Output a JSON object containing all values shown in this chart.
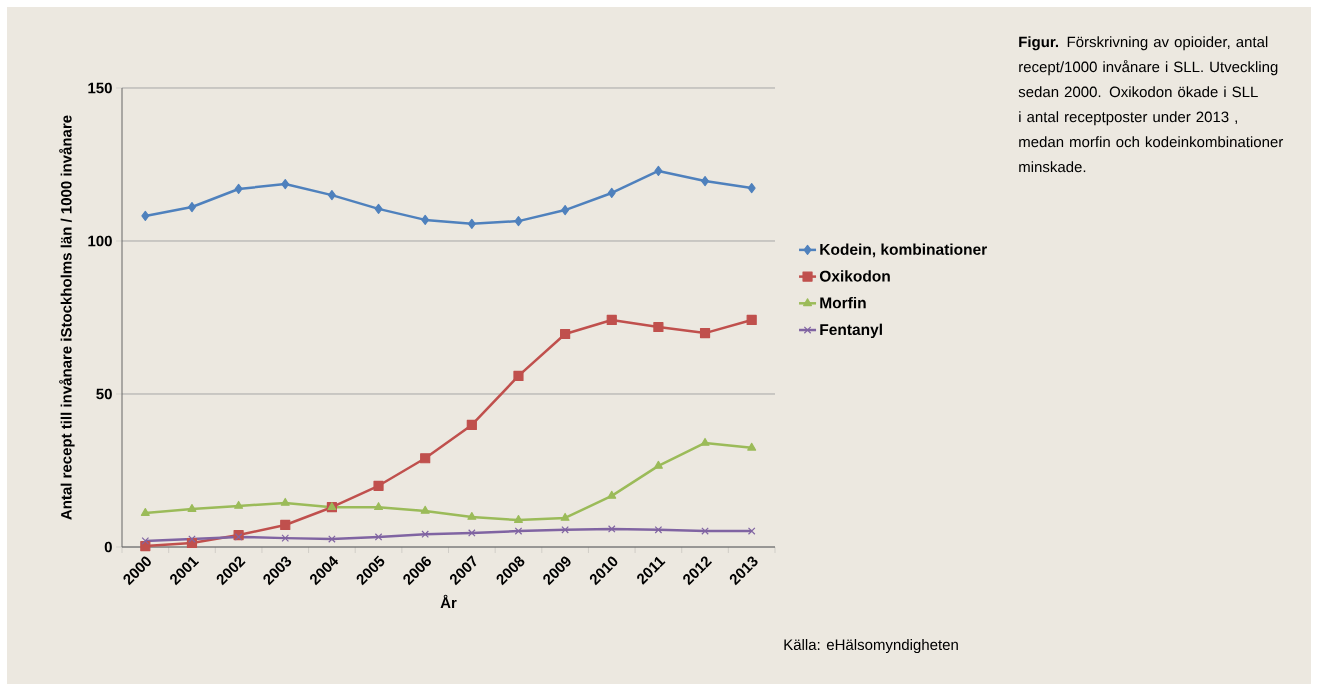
{
  "chart_data": {
    "type": "line",
    "ylabel": "Antal recept till invånare iStockholms län / 1000 invånare",
    "xlabel": "År",
    "categories": [
      "2000",
      "2001",
      "2002",
      "2003",
      "2004",
      "2005",
      "2006",
      "2007",
      "2008",
      "2009",
      "2010",
      "2011",
      "2012",
      "2013"
    ],
    "series": [
      {
        "name": "Kodein, kombinationer",
        "color": "#4f81bd",
        "marker": "diamond",
        "values": [
          108.2,
          111.1,
          117,
          118.6,
          115,
          110.5,
          106.9,
          105.6,
          106.5,
          110.1,
          115.7,
          122.9,
          119.6,
          117.3
        ]
      },
      {
        "name": "Oxikodon",
        "color": "#c0504d",
        "marker": "square",
        "values": [
          0.3,
          1.3,
          3.9,
          7.2,
          13,
          20,
          29,
          39.9,
          55.9,
          69.6,
          74.2,
          71.9,
          69.9,
          74.2
        ]
      },
      {
        "name": "Morfin",
        "color": "#9bbb59",
        "marker": "triangle",
        "values": [
          11.1,
          12.4,
          13.4,
          14.4,
          13,
          13,
          11.8,
          9.8,
          8.8,
          9.5,
          16.7,
          26.5,
          34,
          32.4
        ]
      },
      {
        "name": "Fentanyl",
        "color": "#8064a2",
        "marker": "cross",
        "values": [
          2,
          2.6,
          3.3,
          2.9,
          2.6,
          3.3,
          4.2,
          4.6,
          5.2,
          5.6,
          5.9,
          5.6,
          5.2,
          5.2
        ]
      }
    ],
    "ylim": [
      0,
      150
    ],
    "yticks": [
      0,
      50,
      100,
      150
    ],
    "grid": "y",
    "legend": "right",
    "line_style": "solid",
    "annotations": [
      "**Figur.** Förskrivning av opioider, antal recept/1000 invånare i SLL. Utveckling sedan 2000. Oxikodon ökade i SLL i antal receptposter under 2013 , medan morfin och kodeinkombinationer minskade.",
      "Källa: eHälsomyndigheten"
    ]
  }
}
